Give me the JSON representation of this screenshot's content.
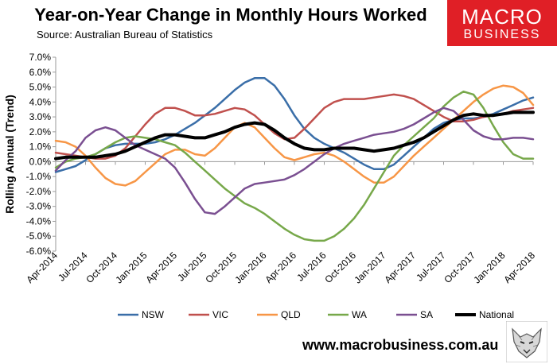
{
  "header": {
    "title": "Year-on-Year Change in Monthly Hours Worked",
    "source": "Source: Australian Bureau of Statistics"
  },
  "logo": {
    "line1": "MACRO",
    "line2": "BUSINESS",
    "color": "#e01f26"
  },
  "footer": {
    "site": "www.macrobusiness.com.au"
  },
  "chart_data": {
    "type": "line",
    "ylabel": "Rolling Annual (Trend)",
    "xlabel": "",
    "ylim": [
      -6,
      7
    ],
    "yticks": [
      "7.0%",
      "6.0%",
      "5.0%",
      "4.0%",
      "3.0%",
      "2.0%",
      "1.0%",
      "0.0%",
      "-1.0%",
      "-2.0%",
      "-3.0%",
      "-4.0%",
      "-5.0%",
      "-6.0%"
    ],
    "x_tick_labels": [
      "Apr-2014",
      "Jul-2014",
      "Oct-2014",
      "Jan-2015",
      "Apr-2015",
      "Jul-2015",
      "Oct-2015",
      "Jan-2016",
      "Apr-2016",
      "Jul-2016",
      "Oct-2016",
      "Jan-2017",
      "Apr-2017",
      "Jul-2017",
      "Oct-2017",
      "Jan-2018",
      "Apr-2018"
    ],
    "x": [
      "Apr-2014",
      "May-2014",
      "Jun-2014",
      "Jul-2014",
      "Aug-2014",
      "Sep-2014",
      "Oct-2014",
      "Nov-2014",
      "Dec-2014",
      "Jan-2015",
      "Feb-2015",
      "Mar-2015",
      "Apr-2015",
      "May-2015",
      "Jun-2015",
      "Jul-2015",
      "Aug-2015",
      "Sep-2015",
      "Oct-2015",
      "Nov-2015",
      "Dec-2015",
      "Jan-2016",
      "Feb-2016",
      "Mar-2016",
      "Apr-2016",
      "May-2016",
      "Jun-2016",
      "Jul-2016",
      "Aug-2016",
      "Sep-2016",
      "Oct-2016",
      "Nov-2016",
      "Dec-2016",
      "Jan-2017",
      "Feb-2017",
      "Mar-2017",
      "Apr-2017",
      "May-2017",
      "Jun-2017",
      "Jul-2017",
      "Aug-2017",
      "Sep-2017",
      "Oct-2017",
      "Nov-2017",
      "Dec-2017",
      "Jan-2018",
      "Feb-2018",
      "Mar-2018",
      "Apr-2018"
    ],
    "legend_position": "bottom",
    "grid": false,
    "series": [
      {
        "name": "NSW",
        "color": "#3a6ea8",
        "width": 2.5,
        "values": [
          -0.7,
          -0.5,
          -0.3,
          0.1,
          0.5,
          0.9,
          1.1,
          1.2,
          1.2,
          1.2,
          1.3,
          1.5,
          1.8,
          2.2,
          2.6,
          3.1,
          3.6,
          4.2,
          4.8,
          5.3,
          5.6,
          5.6,
          5.1,
          4.2,
          3.1,
          2.2,
          1.6,
          1.2,
          0.9,
          0.6,
          0.2,
          -0.2,
          -0.5,
          -0.5,
          -0.2,
          0.4,
          1.0,
          1.6,
          2.2,
          2.6,
          2.8,
          2.9,
          2.9,
          3.0,
          3.2,
          3.5,
          3.8,
          4.1,
          4.3
        ]
      },
      {
        "name": "VIC",
        "color": "#c0504d",
        "width": 2.5,
        "values": [
          0.6,
          0.5,
          0.4,
          0.3,
          0.2,
          0.2,
          0.4,
          0.9,
          1.7,
          2.5,
          3.2,
          3.6,
          3.6,
          3.4,
          3.1,
          3.1,
          3.2,
          3.4,
          3.6,
          3.5,
          3.1,
          2.5,
          1.9,
          1.5,
          1.6,
          2.2,
          2.9,
          3.6,
          4.0,
          4.2,
          4.2,
          4.2,
          4.3,
          4.4,
          4.5,
          4.4,
          4.2,
          3.8,
          3.4,
          3.0,
          2.7,
          2.7,
          2.8,
          3.0,
          3.1,
          3.2,
          3.4,
          3.5,
          3.6
        ]
      },
      {
        "name": "QLD",
        "color": "#f79646",
        "width": 2.5,
        "values": [
          1.4,
          1.3,
          1.0,
          0.4,
          -0.4,
          -1.1,
          -1.5,
          -1.6,
          -1.3,
          -0.7,
          -0.1,
          0.5,
          0.8,
          0.8,
          0.5,
          0.4,
          0.9,
          1.6,
          2.3,
          2.6,
          2.3,
          1.6,
          0.9,
          0.3,
          0.1,
          0.3,
          0.5,
          0.6,
          0.4,
          0.0,
          -0.5,
          -1.0,
          -1.4,
          -1.4,
          -1.0,
          -0.3,
          0.4,
          1.0,
          1.6,
          2.2,
          2.8,
          3.4,
          4.0,
          4.5,
          4.9,
          5.1,
          5.0,
          4.6,
          3.8
        ]
      },
      {
        "name": "WA",
        "color": "#77a84a",
        "width": 2.5,
        "values": [
          -0.4,
          0.0,
          0.2,
          0.3,
          0.5,
          0.9,
          1.3,
          1.6,
          1.7,
          1.6,
          1.5,
          1.3,
          1.1,
          0.6,
          0.0,
          -0.6,
          -1.2,
          -1.8,
          -2.3,
          -2.8,
          -3.1,
          -3.5,
          -4.0,
          -4.5,
          -4.9,
          -5.2,
          -5.3,
          -5.3,
          -5.0,
          -4.5,
          -3.8,
          -2.9,
          -1.8,
          -0.7,
          0.4,
          1.1,
          1.7,
          2.3,
          2.9,
          3.7,
          4.3,
          4.7,
          4.5,
          3.6,
          2.4,
          1.3,
          0.5,
          0.2,
          0.2
        ]
      },
      {
        "name": "SA",
        "color": "#7a4f91",
        "width": 2.5,
        "values": [
          -0.6,
          0.1,
          0.7,
          1.6,
          2.1,
          2.3,
          2.1,
          1.6,
          1.1,
          0.8,
          0.5,
          0.2,
          -0.4,
          -1.4,
          -2.5,
          -3.4,
          -3.5,
          -3.0,
          -2.4,
          -1.8,
          -1.5,
          -1.4,
          -1.3,
          -1.2,
          -0.9,
          -0.5,
          0.0,
          0.5,
          0.9,
          1.2,
          1.4,
          1.6,
          1.8,
          1.9,
          2.0,
          2.2,
          2.5,
          2.9,
          3.3,
          3.6,
          3.4,
          2.8,
          2.1,
          1.7,
          1.5,
          1.5,
          1.6,
          1.6,
          1.5
        ]
      },
      {
        "name": "National",
        "color": "#000000",
        "width": 4,
        "values": [
          0.2,
          0.3,
          0.3,
          0.3,
          0.3,
          0.4,
          0.5,
          0.7,
          1.0,
          1.3,
          1.6,
          1.8,
          1.8,
          1.7,
          1.6,
          1.6,
          1.8,
          2.0,
          2.3,
          2.5,
          2.6,
          2.5,
          2.1,
          1.6,
          1.2,
          0.9,
          0.8,
          0.8,
          0.9,
          0.9,
          0.9,
          0.8,
          0.7,
          0.8,
          0.9,
          1.1,
          1.3,
          1.6,
          2.0,
          2.4,
          2.8,
          3.1,
          3.2,
          3.1,
          3.1,
          3.2,
          3.3,
          3.3,
          3.3
        ]
      }
    ]
  }
}
